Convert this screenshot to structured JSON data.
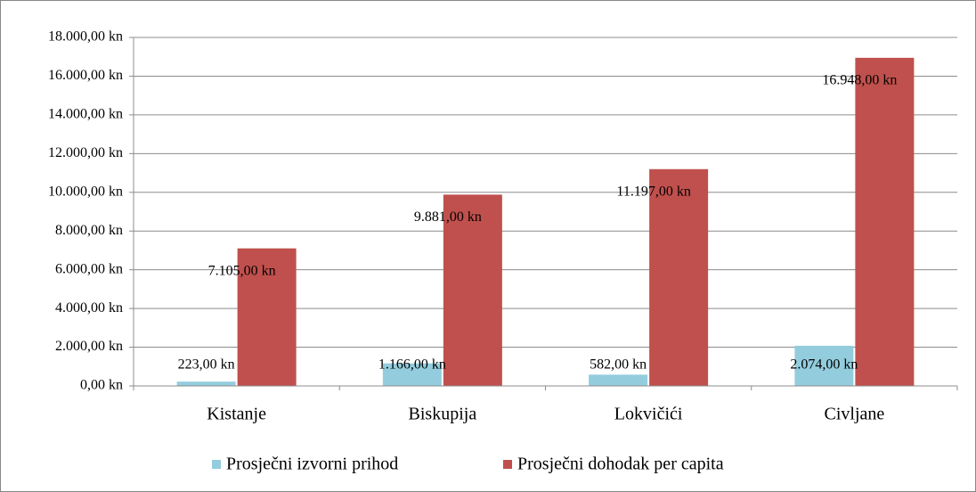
{
  "chart_data": {
    "type": "bar",
    "categories": [
      "Kistanje",
      "Biskupija",
      "Lokvičići",
      "Civljane"
    ],
    "series": [
      {
        "name": "Prosječni izvorni prihod",
        "color": "#93cddd",
        "values": [
          223,
          1166,
          582,
          2074
        ],
        "value_labels": [
          "223,00 kn",
          "1.166,00 kn",
          "582,00 kn",
          "2.074,00 kn"
        ]
      },
      {
        "name": "Prosječni dohodak per capita",
        "color": "#c0504d",
        "values": [
          7105,
          9881,
          11197,
          16948
        ],
        "value_labels": [
          "7.105,00 kn",
          "9.881,00 kn",
          "11.197,00 kn",
          "16.948,00 kn"
        ]
      }
    ],
    "ylim": [
      0,
      18000
    ],
    "yticks": [
      {
        "value": 0,
        "label": "0,00 kn"
      },
      {
        "value": 2000,
        "label": "2.000,00 kn"
      },
      {
        "value": 4000,
        "label": "4.000,00 kn"
      },
      {
        "value": 6000,
        "label": "6.000,00 kn"
      },
      {
        "value": 8000,
        "label": "8.000,00 kn"
      },
      {
        "value": 10000,
        "label": "10.000,00 kn"
      },
      {
        "value": 12000,
        "label": "12.000,00 kn"
      },
      {
        "value": 14000,
        "label": "14.000,00 kn"
      },
      {
        "value": 16000,
        "label": "16.000,00 kn"
      },
      {
        "value": 18000,
        "label": "18.000,00 kn"
      }
    ],
    "grid": true,
    "legend": "bottom"
  }
}
